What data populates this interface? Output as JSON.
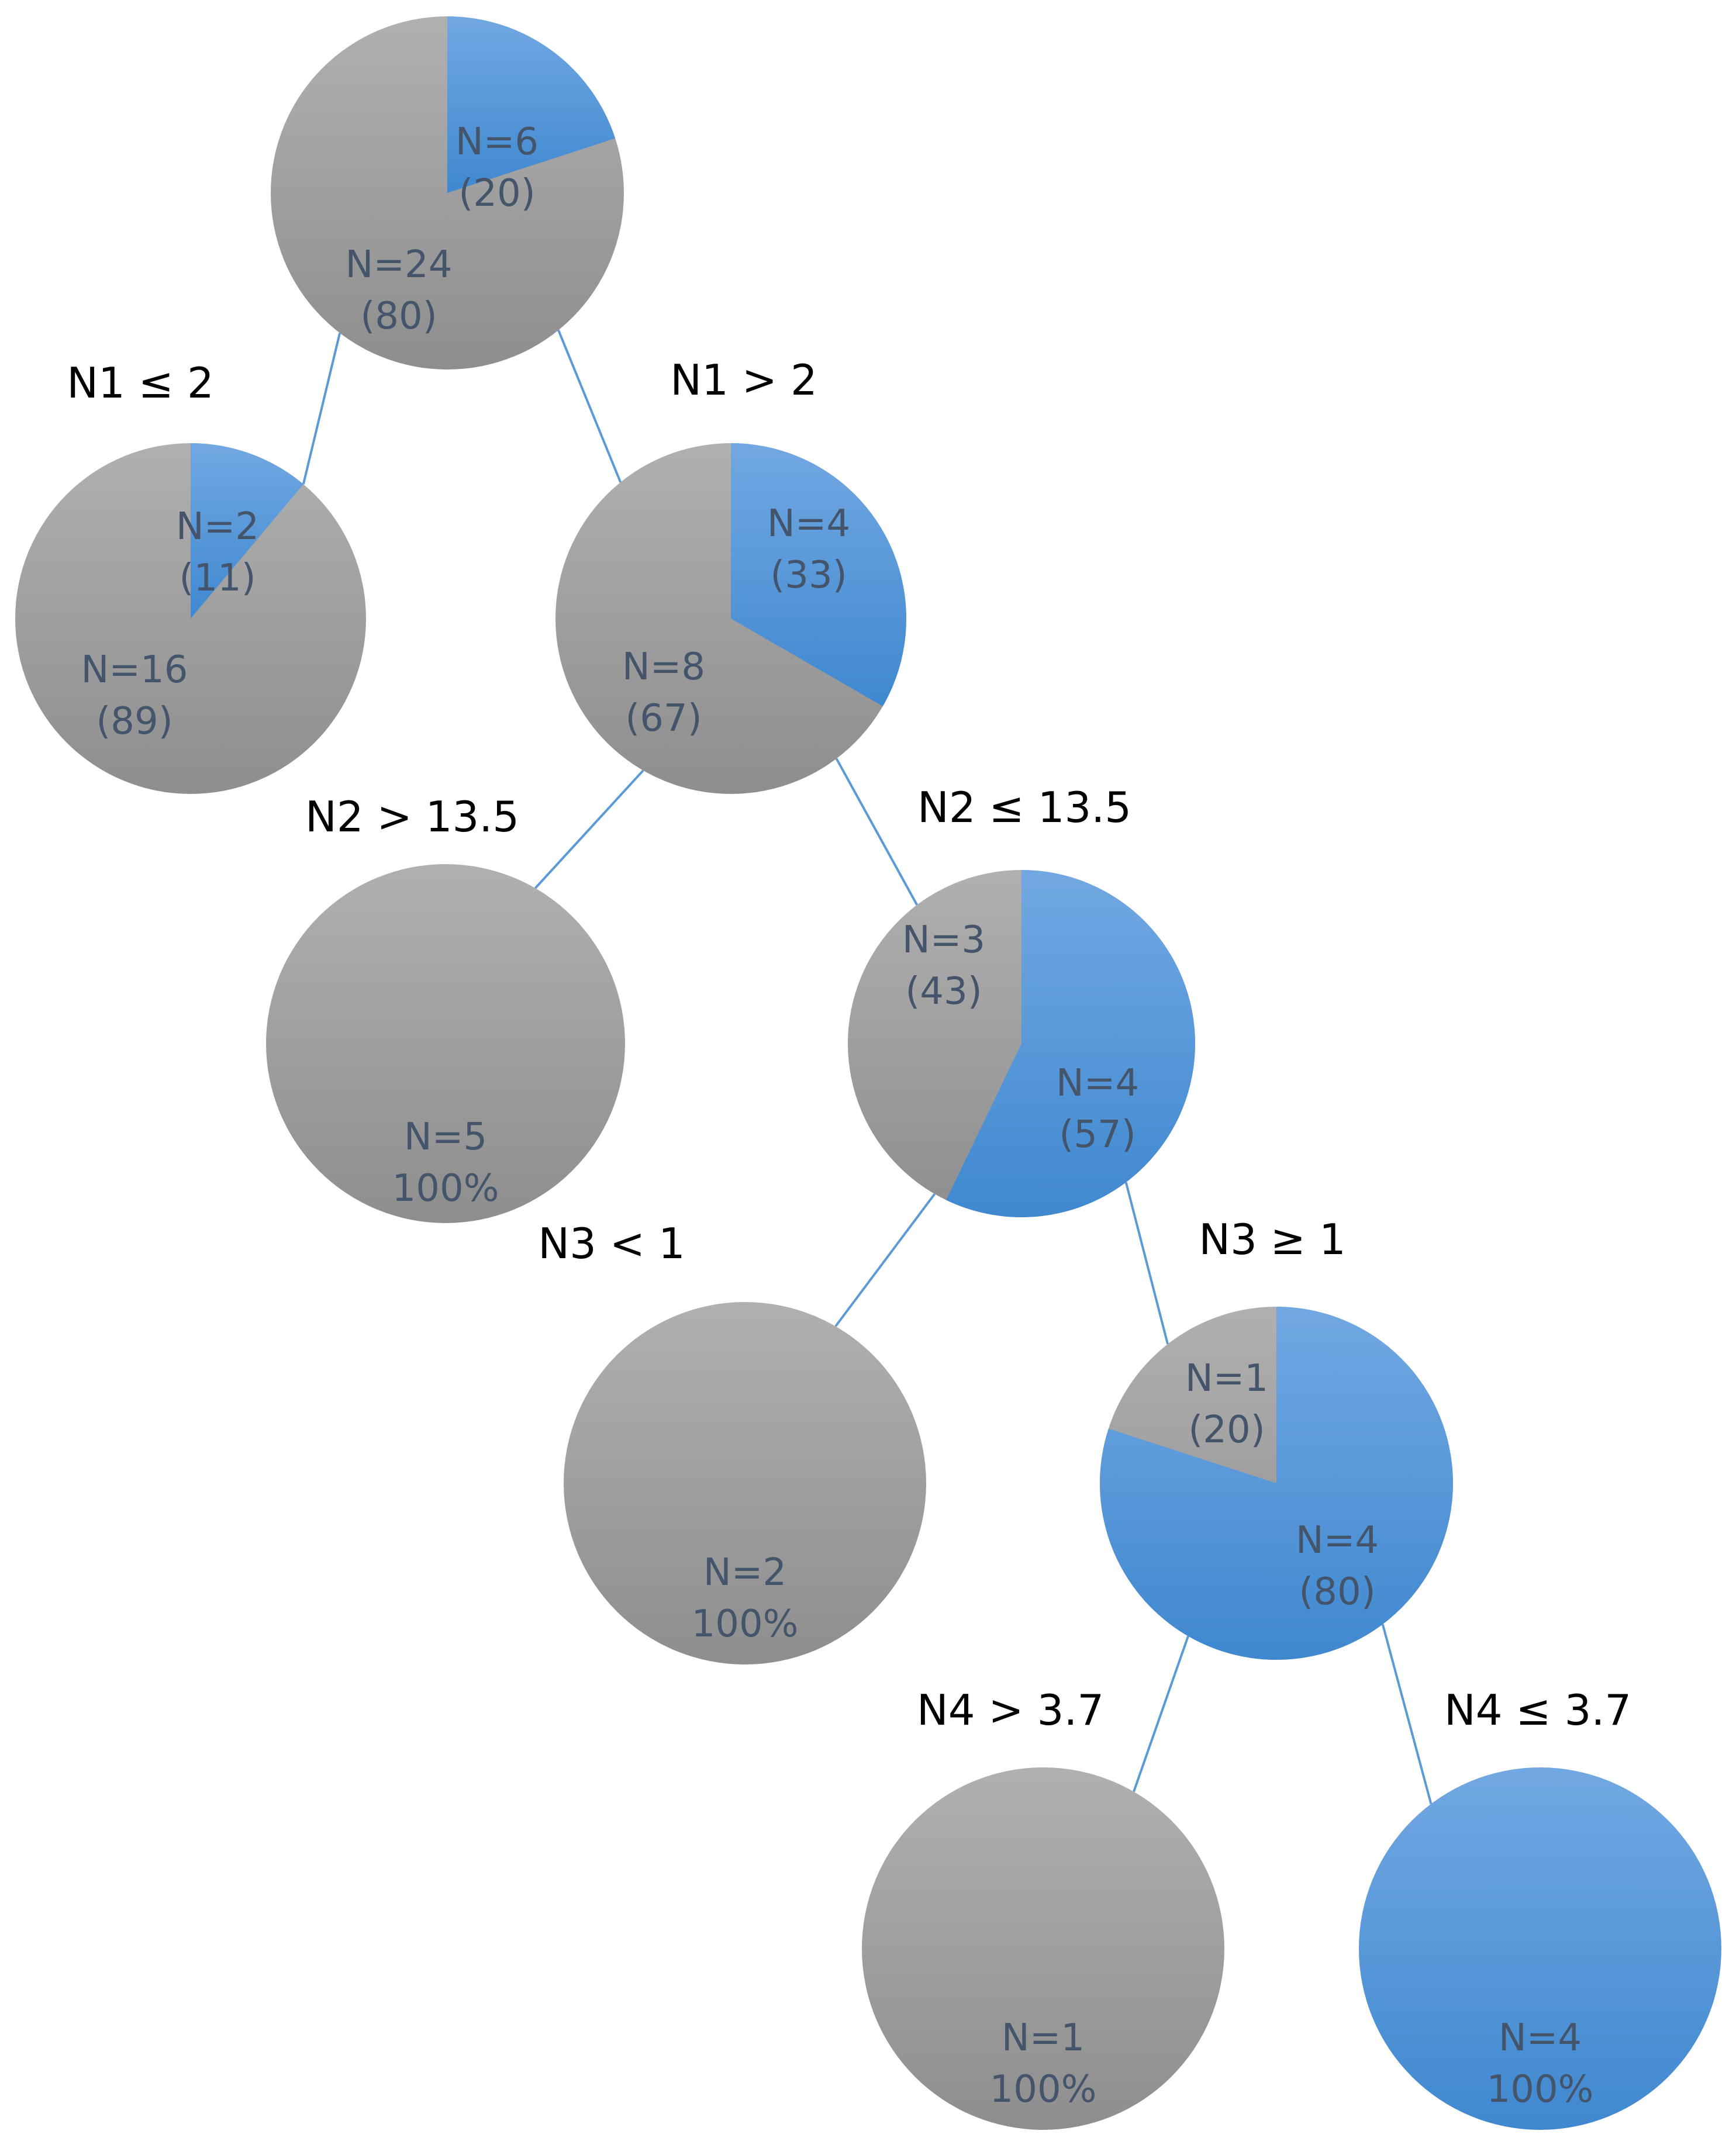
{
  "colors": {
    "grey_top": "#b0b0b0",
    "grey_bottom": "#8e8e8e",
    "blue_top": "#72a8e2",
    "blue_bottom": "#3f88d0",
    "edge": "#5b9bd5",
    "label": "#44546a",
    "condition": "#000000"
  },
  "nodes": [
    {
      "id": "root",
      "parts": [
        {
          "kind": "grey",
          "value": 24,
          "n": "N=24",
          "sub": "(80)"
        },
        {
          "kind": "blue",
          "value": 6,
          "n": "N=6",
          "sub": "(20)"
        }
      ]
    },
    {
      "id": "n1-le",
      "parts": [
        {
          "kind": "grey",
          "value": 16,
          "n": "N=16",
          "sub": "(89)"
        },
        {
          "kind": "blue",
          "value": 2,
          "n": "N=2",
          "sub": "(11)"
        }
      ]
    },
    {
      "id": "n1-gt",
      "parts": [
        {
          "kind": "grey",
          "value": 8,
          "n": "N=8",
          "sub": "(67)"
        },
        {
          "kind": "blue",
          "value": 4,
          "n": "N=4",
          "sub": "(33)"
        }
      ]
    },
    {
      "id": "n2-gt",
      "parts": [
        {
          "kind": "grey",
          "value": 5,
          "n": "N=5",
          "sub": "100%"
        }
      ]
    },
    {
      "id": "n2-le",
      "parts": [
        {
          "kind": "grey",
          "value": 3,
          "n": "N=3",
          "sub": "(43)"
        },
        {
          "kind": "blue",
          "value": 4,
          "n": "N=4",
          "sub": "(57)"
        }
      ]
    },
    {
      "id": "n3-lt",
      "parts": [
        {
          "kind": "grey",
          "value": 2,
          "n": "N=2",
          "sub": "100%"
        }
      ]
    },
    {
      "id": "n3-ge",
      "parts": [
        {
          "kind": "grey",
          "value": 1,
          "n": "N=1",
          "sub": "(20)"
        },
        {
          "kind": "blue",
          "value": 4,
          "n": "N=4",
          "sub": "(80)"
        }
      ]
    },
    {
      "id": "n4-gt",
      "parts": [
        {
          "kind": "grey",
          "value": 1,
          "n": "N=1",
          "sub": "100%"
        }
      ]
    },
    {
      "id": "n4-le",
      "parts": [
        {
          "kind": "blue",
          "value": 4,
          "n": "N=4",
          "sub": "100%"
        }
      ]
    }
  ],
  "edges": [
    {
      "from": "root",
      "to": "n1-le",
      "condition": "N1 ≤ 2"
    },
    {
      "from": "root",
      "to": "n1-gt",
      "condition": "N1 > 2"
    },
    {
      "from": "n1-gt",
      "to": "n2-gt",
      "condition": "N2 > 13.5"
    },
    {
      "from": "n1-gt",
      "to": "n2-le",
      "condition": "N2 ≤ 13.5"
    },
    {
      "from": "n2-le",
      "to": "n3-lt",
      "condition": "N3 < 1"
    },
    {
      "from": "n2-le",
      "to": "n3-ge",
      "condition": "N3 ≥ 1"
    },
    {
      "from": "n3-ge",
      "to": "n4-gt",
      "condition": "N4 > 3.7"
    },
    {
      "from": "n3-ge",
      "to": "n4-le",
      "condition": "N4 ≤ 3.7"
    }
  ]
}
